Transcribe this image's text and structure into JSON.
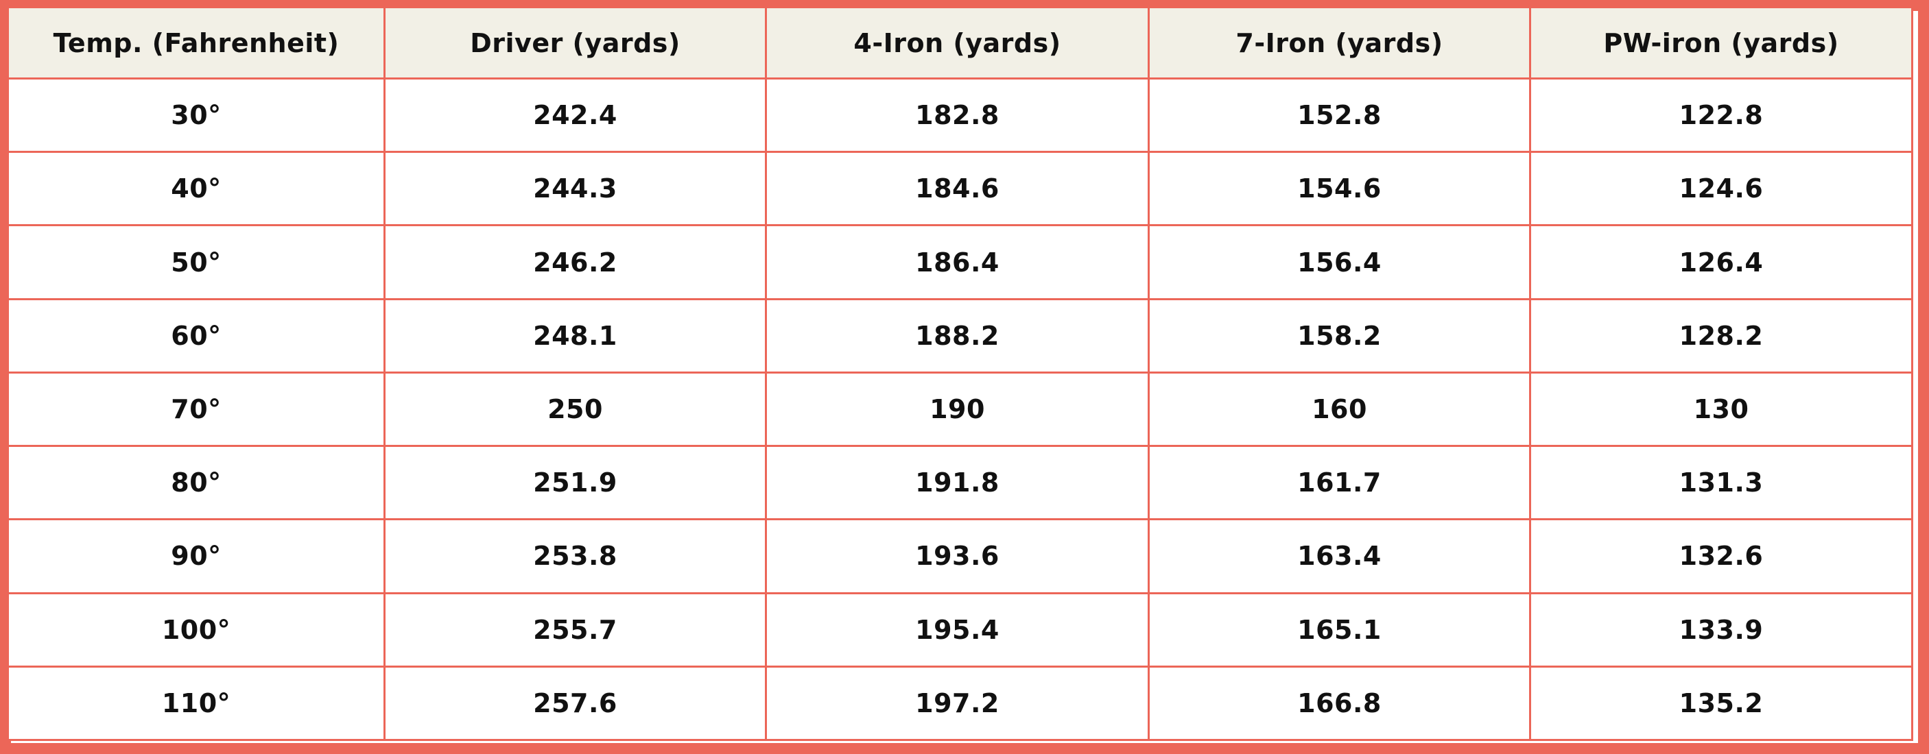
{
  "table": {
    "headers": [
      "Temp. (Fahrenheit)",
      "Driver (yards)",
      "4-Iron (yards)",
      "7-Iron (yards)",
      "PW-iron (yards)"
    ],
    "rows": [
      [
        "30°",
        "242.4",
        "182.8",
        "152.8",
        "122.8"
      ],
      [
        "40°",
        "244.3",
        "184.6",
        "154.6",
        "124.6"
      ],
      [
        "50°",
        "246.2",
        "186.4",
        "156.4",
        "126.4"
      ],
      [
        "60°",
        "248.1",
        "188.2",
        "158.2",
        "128.2"
      ],
      [
        "70°",
        "250",
        "190",
        "160",
        "130"
      ],
      [
        "80°",
        "251.9",
        "191.8",
        "161.7",
        "131.3"
      ],
      [
        "90°",
        "253.8",
        "193.6",
        "163.4",
        "132.6"
      ],
      [
        "100°",
        "255.7",
        "195.4",
        "165.1",
        "133.9"
      ],
      [
        "110°",
        "257.6",
        "197.2",
        "166.8",
        "135.2"
      ]
    ]
  },
  "colors": {
    "border": "#ec6658",
    "header_background": "#f2f0e6",
    "cell_background": "#ffffff",
    "text": "#111111"
  }
}
